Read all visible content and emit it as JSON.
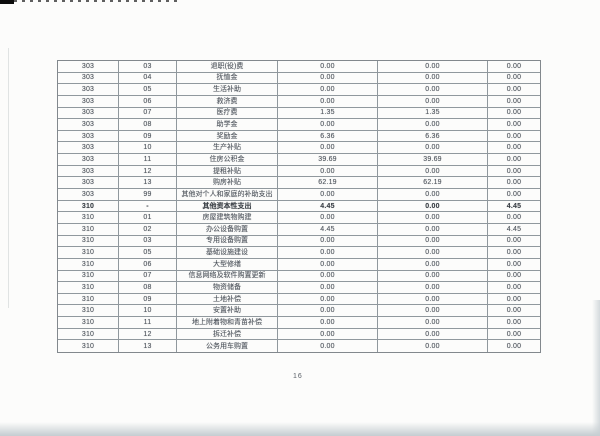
{
  "page": {
    "number": "16"
  },
  "colors": {
    "paper": "#fcfcfb",
    "table_border": "#90989d",
    "text": "#4e545c",
    "scan_artifact": "#0c0c0c",
    "scanner_shadow": "#c7ced2"
  },
  "table": {
    "columns": [
      "code",
      "subcode",
      "name",
      "value1",
      "value2",
      "value3"
    ],
    "rows": [
      {
        "code": "303",
        "sub": "03",
        "name": "退职(役)费",
        "v1": "0.00",
        "v2": "0.00",
        "v3": "0.00",
        "bold": false
      },
      {
        "code": "303",
        "sub": "04",
        "name": "抚恤金",
        "v1": "0.00",
        "v2": "0.00",
        "v3": "0.00",
        "bold": false
      },
      {
        "code": "303",
        "sub": "05",
        "name": "生活补助",
        "v1": "0.00",
        "v2": "0.00",
        "v3": "0.00",
        "bold": false
      },
      {
        "code": "303",
        "sub": "06",
        "name": "救济费",
        "v1": "0.00",
        "v2": "0.00",
        "v3": "0.00",
        "bold": false
      },
      {
        "code": "303",
        "sub": "07",
        "name": "医疗费",
        "v1": "1.35",
        "v2": "1.35",
        "v3": "0.00",
        "bold": false
      },
      {
        "code": "303",
        "sub": "08",
        "name": "助学金",
        "v1": "0.00",
        "v2": "0.00",
        "v3": "0.00",
        "bold": false
      },
      {
        "code": "303",
        "sub": "09",
        "name": "奖励金",
        "v1": "6.36",
        "v2": "6.36",
        "v3": "0.00",
        "bold": false
      },
      {
        "code": "303",
        "sub": "10",
        "name": "生产补贴",
        "v1": "0.00",
        "v2": "0.00",
        "v3": "0.00",
        "bold": false
      },
      {
        "code": "303",
        "sub": "11",
        "name": "住房公积金",
        "v1": "39.69",
        "v2": "39.69",
        "v3": "0.00",
        "bold": false
      },
      {
        "code": "303",
        "sub": "12",
        "name": "提租补贴",
        "v1": "0.00",
        "v2": "0.00",
        "v3": "0.00",
        "bold": false
      },
      {
        "code": "303",
        "sub": "13",
        "name": "购房补贴",
        "v1": "62.19",
        "v2": "62.19",
        "v3": "0.00",
        "bold": false
      },
      {
        "code": "303",
        "sub": "99",
        "name": "其他对个人和家庭的补助支出",
        "v1": "0.00",
        "v2": "0.00",
        "v3": "0.00",
        "bold": false
      },
      {
        "code": "310",
        "sub": "-",
        "name": "其他资本性支出",
        "v1": "4.45",
        "v2": "0.00",
        "v3": "4.45",
        "bold": true
      },
      {
        "code": "310",
        "sub": "01",
        "name": "房屋建筑物购建",
        "v1": "0.00",
        "v2": "0.00",
        "v3": "0.00",
        "bold": false
      },
      {
        "code": "310",
        "sub": "02",
        "name": "办公设备购置",
        "v1": "4.45",
        "v2": "0.00",
        "v3": "4.45",
        "bold": false
      },
      {
        "code": "310",
        "sub": "03",
        "name": "专用设备购置",
        "v1": "0.00",
        "v2": "0.00",
        "v3": "0.00",
        "bold": false
      },
      {
        "code": "310",
        "sub": "05",
        "name": "基础设施建设",
        "v1": "0.00",
        "v2": "0.00",
        "v3": "0.00",
        "bold": false
      },
      {
        "code": "310",
        "sub": "06",
        "name": "大型修缮",
        "v1": "0.00",
        "v2": "0.00",
        "v3": "0.00",
        "bold": false
      },
      {
        "code": "310",
        "sub": "07",
        "name": "信息网络及软件购置更新",
        "v1": "0.00",
        "v2": "0.00",
        "v3": "0.00",
        "bold": false
      },
      {
        "code": "310",
        "sub": "08",
        "name": "物资储备",
        "v1": "0.00",
        "v2": "0.00",
        "v3": "0.00",
        "bold": false
      },
      {
        "code": "310",
        "sub": "09",
        "name": "土地补偿",
        "v1": "0.00",
        "v2": "0.00",
        "v3": "0.00",
        "bold": false
      },
      {
        "code": "310",
        "sub": "10",
        "name": "安置补助",
        "v1": "0.00",
        "v2": "0.00",
        "v3": "0.00",
        "bold": false
      },
      {
        "code": "310",
        "sub": "11",
        "name": "地上附着物和青苗补偿",
        "v1": "0.00",
        "v2": "0.00",
        "v3": "0.00",
        "bold": false
      },
      {
        "code": "310",
        "sub": "12",
        "name": "拆迁补偿",
        "v1": "0.00",
        "v2": "0.00",
        "v3": "0.00",
        "bold": false
      },
      {
        "code": "310",
        "sub": "13",
        "name": "公务用车购置",
        "v1": "0.00",
        "v2": "0.00",
        "v3": "0.00",
        "bold": false
      }
    ]
  }
}
